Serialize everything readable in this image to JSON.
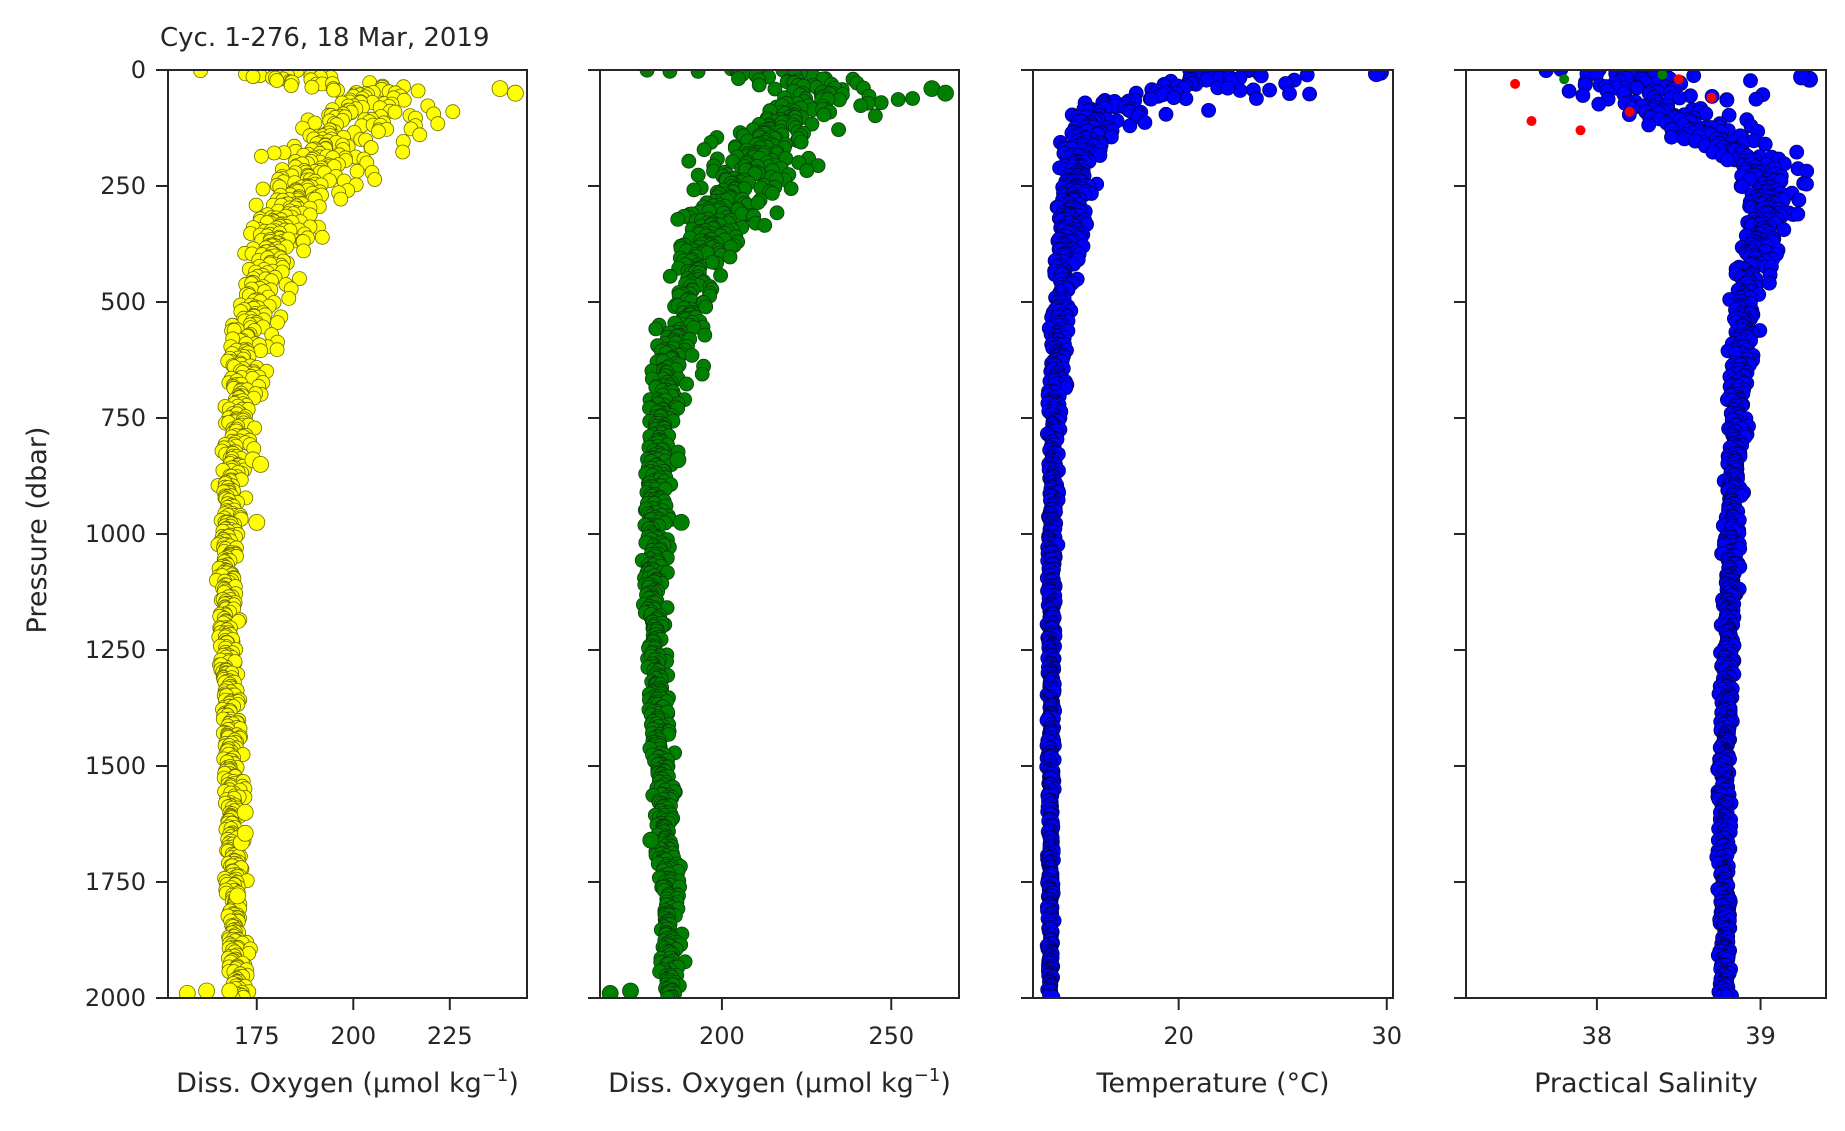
{
  "figure": {
    "title": "Cyc. 1-276, 18 Mar, 2019",
    "ylabel": "Pressure (dbar)"
  },
  "chart_data": [
    {
      "type": "scatter",
      "title": "Cyc. 1-276, 18 Mar, 2019",
      "xlabel": "Diss. Oxygen (μmol kg",
      "xlabel_sup": "−1",
      "xlabel_tail": ")",
      "ylabel": "Pressure (dbar)",
      "xlim": [
        152,
        245
      ],
      "ylim": [
        2000,
        0
      ],
      "y_inverted": true,
      "xticks": [
        175,
        200,
        225
      ],
      "yticks": [
        0,
        250,
        500,
        750,
        1000,
        1250,
        1500,
        1750,
        2000
      ],
      "grid": false,
      "series": [
        {
          "marker_color": "#ffff00",
          "edge_color": "#6b6b00",
          "profile": [
            [
              0,
              172
            ],
            [
              25,
              185
            ],
            [
              50,
              205
            ],
            [
              80,
              200
            ],
            [
              120,
              196
            ],
            [
              200,
              191
            ],
            [
              300,
              184
            ],
            [
              400,
              178
            ],
            [
              500,
              175
            ],
            [
              600,
              172
            ],
            [
              750,
              170
            ],
            [
              900,
              168
            ],
            [
              1000,
              167
            ],
            [
              1250,
              167
            ],
            [
              1500,
              168
            ],
            [
              1750,
              169
            ],
            [
              1990,
              170
            ]
          ],
          "spread_left": [
            [
              0,
              20
            ],
            [
              50,
              10
            ],
            [
              100,
              14
            ],
            [
              200,
              18
            ],
            [
              300,
              12
            ],
            [
              400,
              8
            ],
            [
              600,
              6
            ],
            [
              800,
              4
            ],
            [
              1000,
              3
            ],
            [
              1300,
              2
            ],
            [
              2000,
              3
            ]
          ],
          "spread_right": [
            [
              0,
              20
            ],
            [
              50,
              38
            ],
            [
              100,
              34
            ],
            [
              200,
              22
            ],
            [
              300,
              14
            ],
            [
              400,
              12
            ],
            [
              600,
              12
            ],
            [
              800,
              6
            ],
            [
              1000,
              5
            ],
            [
              1300,
              4
            ],
            [
              2000,
              5
            ]
          ],
          "outliers": [
            [
              1990,
              157
            ],
            [
              1985,
              162
            ],
            [
              1985,
              168
            ],
            [
              1665,
              171
            ],
            [
              1645,
              172
            ],
            [
              1600,
              172
            ],
            [
              975,
              175
            ],
            [
              840,
              174
            ],
            [
              850,
              176
            ],
            [
              1780,
              170
            ],
            [
              40,
              238
            ],
            [
              50,
              242
            ]
          ]
        }
      ]
    },
    {
      "type": "scatter",
      "xlabel": "Diss. Oxygen (μmol kg",
      "xlabel_sup": "−1",
      "xlabel_tail": ")",
      "xlim": [
        164,
        270
      ],
      "ylim": [
        2000,
        0
      ],
      "y_inverted": true,
      "xticks": [
        200,
        250
      ],
      "yticks": [
        0,
        250,
        500,
        750,
        1000,
        1250,
        1500,
        1750,
        2000
      ],
      "grid": false,
      "series": [
        {
          "marker_color": "#008000",
          "edge_color": "#0a3d0a",
          "profile": [
            [
              0,
              200
            ],
            [
              25,
              220
            ],
            [
              50,
              232
            ],
            [
              80,
              225
            ],
            [
              120,
              216
            ],
            [
              200,
              208
            ],
            [
              300,
              200
            ],
            [
              400,
              194
            ],
            [
              500,
              190
            ],
            [
              600,
              186
            ],
            [
              750,
              182
            ],
            [
              900,
              180
            ],
            [
              1000,
              180
            ],
            [
              1250,
              180
            ],
            [
              1500,
              182
            ],
            [
              1750,
              184
            ],
            [
              1990,
              185
            ]
          ],
          "spread_left": [
            [
              0,
              28
            ],
            [
              50,
              16
            ],
            [
              100,
              18
            ],
            [
              200,
              22
            ],
            [
              300,
              14
            ],
            [
              400,
              10
            ],
            [
              600,
              7
            ],
            [
              800,
              5
            ],
            [
              1000,
              4
            ],
            [
              1300,
              3
            ],
            [
              2000,
              4
            ]
          ],
          "spread_right": [
            [
              0,
              30
            ],
            [
              50,
              34
            ],
            [
              100,
              30
            ],
            [
              200,
              28
            ],
            [
              300,
              18
            ],
            [
              400,
              14
            ],
            [
              600,
              12
            ],
            [
              800,
              7
            ],
            [
              1000,
              6
            ],
            [
              1300,
              5
            ],
            [
              2000,
              5
            ]
          ],
          "outliers": [
            [
              1990,
              167
            ],
            [
              1985,
              173
            ],
            [
              1660,
              179
            ],
            [
              975,
              188
            ],
            [
              840,
              187
            ],
            [
              40,
              262
            ],
            [
              50,
              266
            ]
          ]
        }
      ]
    },
    {
      "type": "scatter",
      "xlabel": "Temperature (°C)",
      "xlim": [
        13,
        30.3
      ],
      "ylim": [
        2000,
        0
      ],
      "y_inverted": true,
      "xticks": [
        20,
        30
      ],
      "yticks": [
        0,
        250,
        500,
        750,
        1000,
        1250,
        1500,
        1750,
        2000
      ],
      "grid": false,
      "series": [
        {
          "marker_color": "#0000ff",
          "edge_color": "#000066",
          "profile": [
            [
              0,
              22
            ],
            [
              20,
              22
            ],
            [
              40,
              20
            ],
            [
              60,
              18.5
            ],
            [
              80,
              16.8
            ],
            [
              100,
              16.2
            ],
            [
              150,
              15.6
            ],
            [
              200,
              15.2
            ],
            [
              300,
              14.8
            ],
            [
              400,
              14.5
            ],
            [
              500,
              14.3
            ],
            [
              750,
              14.0
            ],
            [
              1000,
              13.9
            ],
            [
              1500,
              13.85
            ],
            [
              2000,
              13.85
            ]
          ],
          "spread_left": [
            [
              0,
              8
            ],
            [
              50,
              3
            ],
            [
              100,
              2
            ],
            [
              200,
              1
            ],
            [
              400,
              0.6
            ],
            [
              800,
              0.3
            ],
            [
              1500,
              0.2
            ],
            [
              2000,
              0.2
            ]
          ],
          "spread_right": [
            [
              0,
              8
            ],
            [
              50,
              10
            ],
            [
              80,
              8
            ],
            [
              100,
              3
            ],
            [
              200,
              1.2
            ],
            [
              400,
              1.0
            ],
            [
              800,
              0.4
            ],
            [
              1500,
              0.2
            ],
            [
              2000,
              0.2
            ]
          ],
          "outliers": [
            [
              5,
              29.7
            ],
            [
              8,
              29.5
            ]
          ]
        }
      ]
    },
    {
      "type": "scatter",
      "xlabel": "Practical Salinity",
      "xlim": [
        37.2,
        39.4
      ],
      "ylim": [
        2000,
        0
      ],
      "y_inverted": true,
      "xticks": [
        38,
        39
      ],
      "yticks": [
        0,
        250,
        500,
        750,
        1000,
        1250,
        1500,
        1750,
        2000
      ],
      "grid": false,
      "series": [
        {
          "marker_color": "#0000ff",
          "edge_color": "#000066",
          "profile": [
            [
              0,
              38.1
            ],
            [
              40,
              38.3
            ],
            [
              80,
              38.4
            ],
            [
              120,
              38.55
            ],
            [
              160,
              38.85
            ],
            [
              200,
              38.95
            ],
            [
              250,
              39.05
            ],
            [
              300,
              39.05
            ],
            [
              400,
              38.95
            ],
            [
              500,
              38.9
            ],
            [
              750,
              38.85
            ],
            [
              1000,
              38.82
            ],
            [
              1500,
              38.78
            ],
            [
              2000,
              38.78
            ]
          ],
          "spread_left": [
            [
              0,
              0.8
            ],
            [
              50,
              0.6
            ],
            [
              100,
              0.45
            ],
            [
              150,
              0.35
            ],
            [
              200,
              0.25
            ],
            [
              300,
              0.15
            ],
            [
              500,
              0.1
            ],
            [
              800,
              0.06
            ],
            [
              1500,
              0.05
            ],
            [
              2000,
              0.05
            ]
          ],
          "spread_right": [
            [
              0,
              1.1
            ],
            [
              50,
              0.9
            ],
            [
              100,
              0.6
            ],
            [
              150,
              0.45
            ],
            [
              200,
              0.32
            ],
            [
              300,
              0.22
            ],
            [
              500,
              0.15
            ],
            [
              800,
              0.08
            ],
            [
              1500,
              0.05
            ],
            [
              2000,
              0.05
            ]
          ],
          "outliers": [
            [
              20,
              39.3
            ],
            [
              15,
              39.25
            ]
          ],
          "accent_points": [
            [
              110,
              37.6,
              "#ff0000"
            ],
            [
              130,
              37.9,
              "#ff0000"
            ],
            [
              90,
              38.2,
              "#ff0000"
            ],
            [
              20,
              38.5,
              "#ff0000"
            ],
            [
              60,
              38.7,
              "#ff0000"
            ],
            [
              20,
              37.8,
              "#008000"
            ],
            [
              10,
              38.4,
              "#008000"
            ],
            [
              30,
              37.5,
              "#ff0000"
            ]
          ]
        }
      ]
    }
  ]
}
